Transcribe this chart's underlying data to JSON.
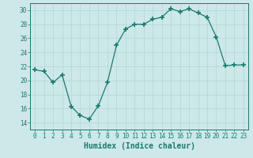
{
  "x": [
    0,
    1,
    2,
    3,
    4,
    5,
    6,
    7,
    8,
    9,
    10,
    11,
    12,
    13,
    14,
    15,
    16,
    17,
    18,
    19,
    20,
    21,
    22,
    23
  ],
  "y": [
    21.5,
    21.3,
    19.7,
    20.8,
    16.3,
    15.0,
    14.5,
    16.4,
    19.7,
    25.0,
    27.3,
    28.0,
    28.0,
    28.7,
    29.0,
    30.2,
    29.8,
    30.2,
    29.6,
    29.0,
    26.2,
    22.1,
    22.2,
    22.2
  ],
  "line_color": "#1a7a6e",
  "marker": "+",
  "marker_size": 4,
  "bg_color": "#cce8e8",
  "grid_color": "#b8d8d8",
  "xlabel": "Humidex (Indice chaleur)",
  "xlim": [
    -0.5,
    23.5
  ],
  "ylim": [
    13,
    31
  ],
  "yticks": [
    14,
    16,
    18,
    20,
    22,
    24,
    26,
    28,
    30
  ],
  "xticks": [
    0,
    1,
    2,
    3,
    4,
    5,
    6,
    7,
    8,
    9,
    10,
    11,
    12,
    13,
    14,
    15,
    16,
    17,
    18,
    19,
    20,
    21,
    22,
    23
  ],
  "tick_label_fontsize": 5.5,
  "xlabel_fontsize": 7.0
}
